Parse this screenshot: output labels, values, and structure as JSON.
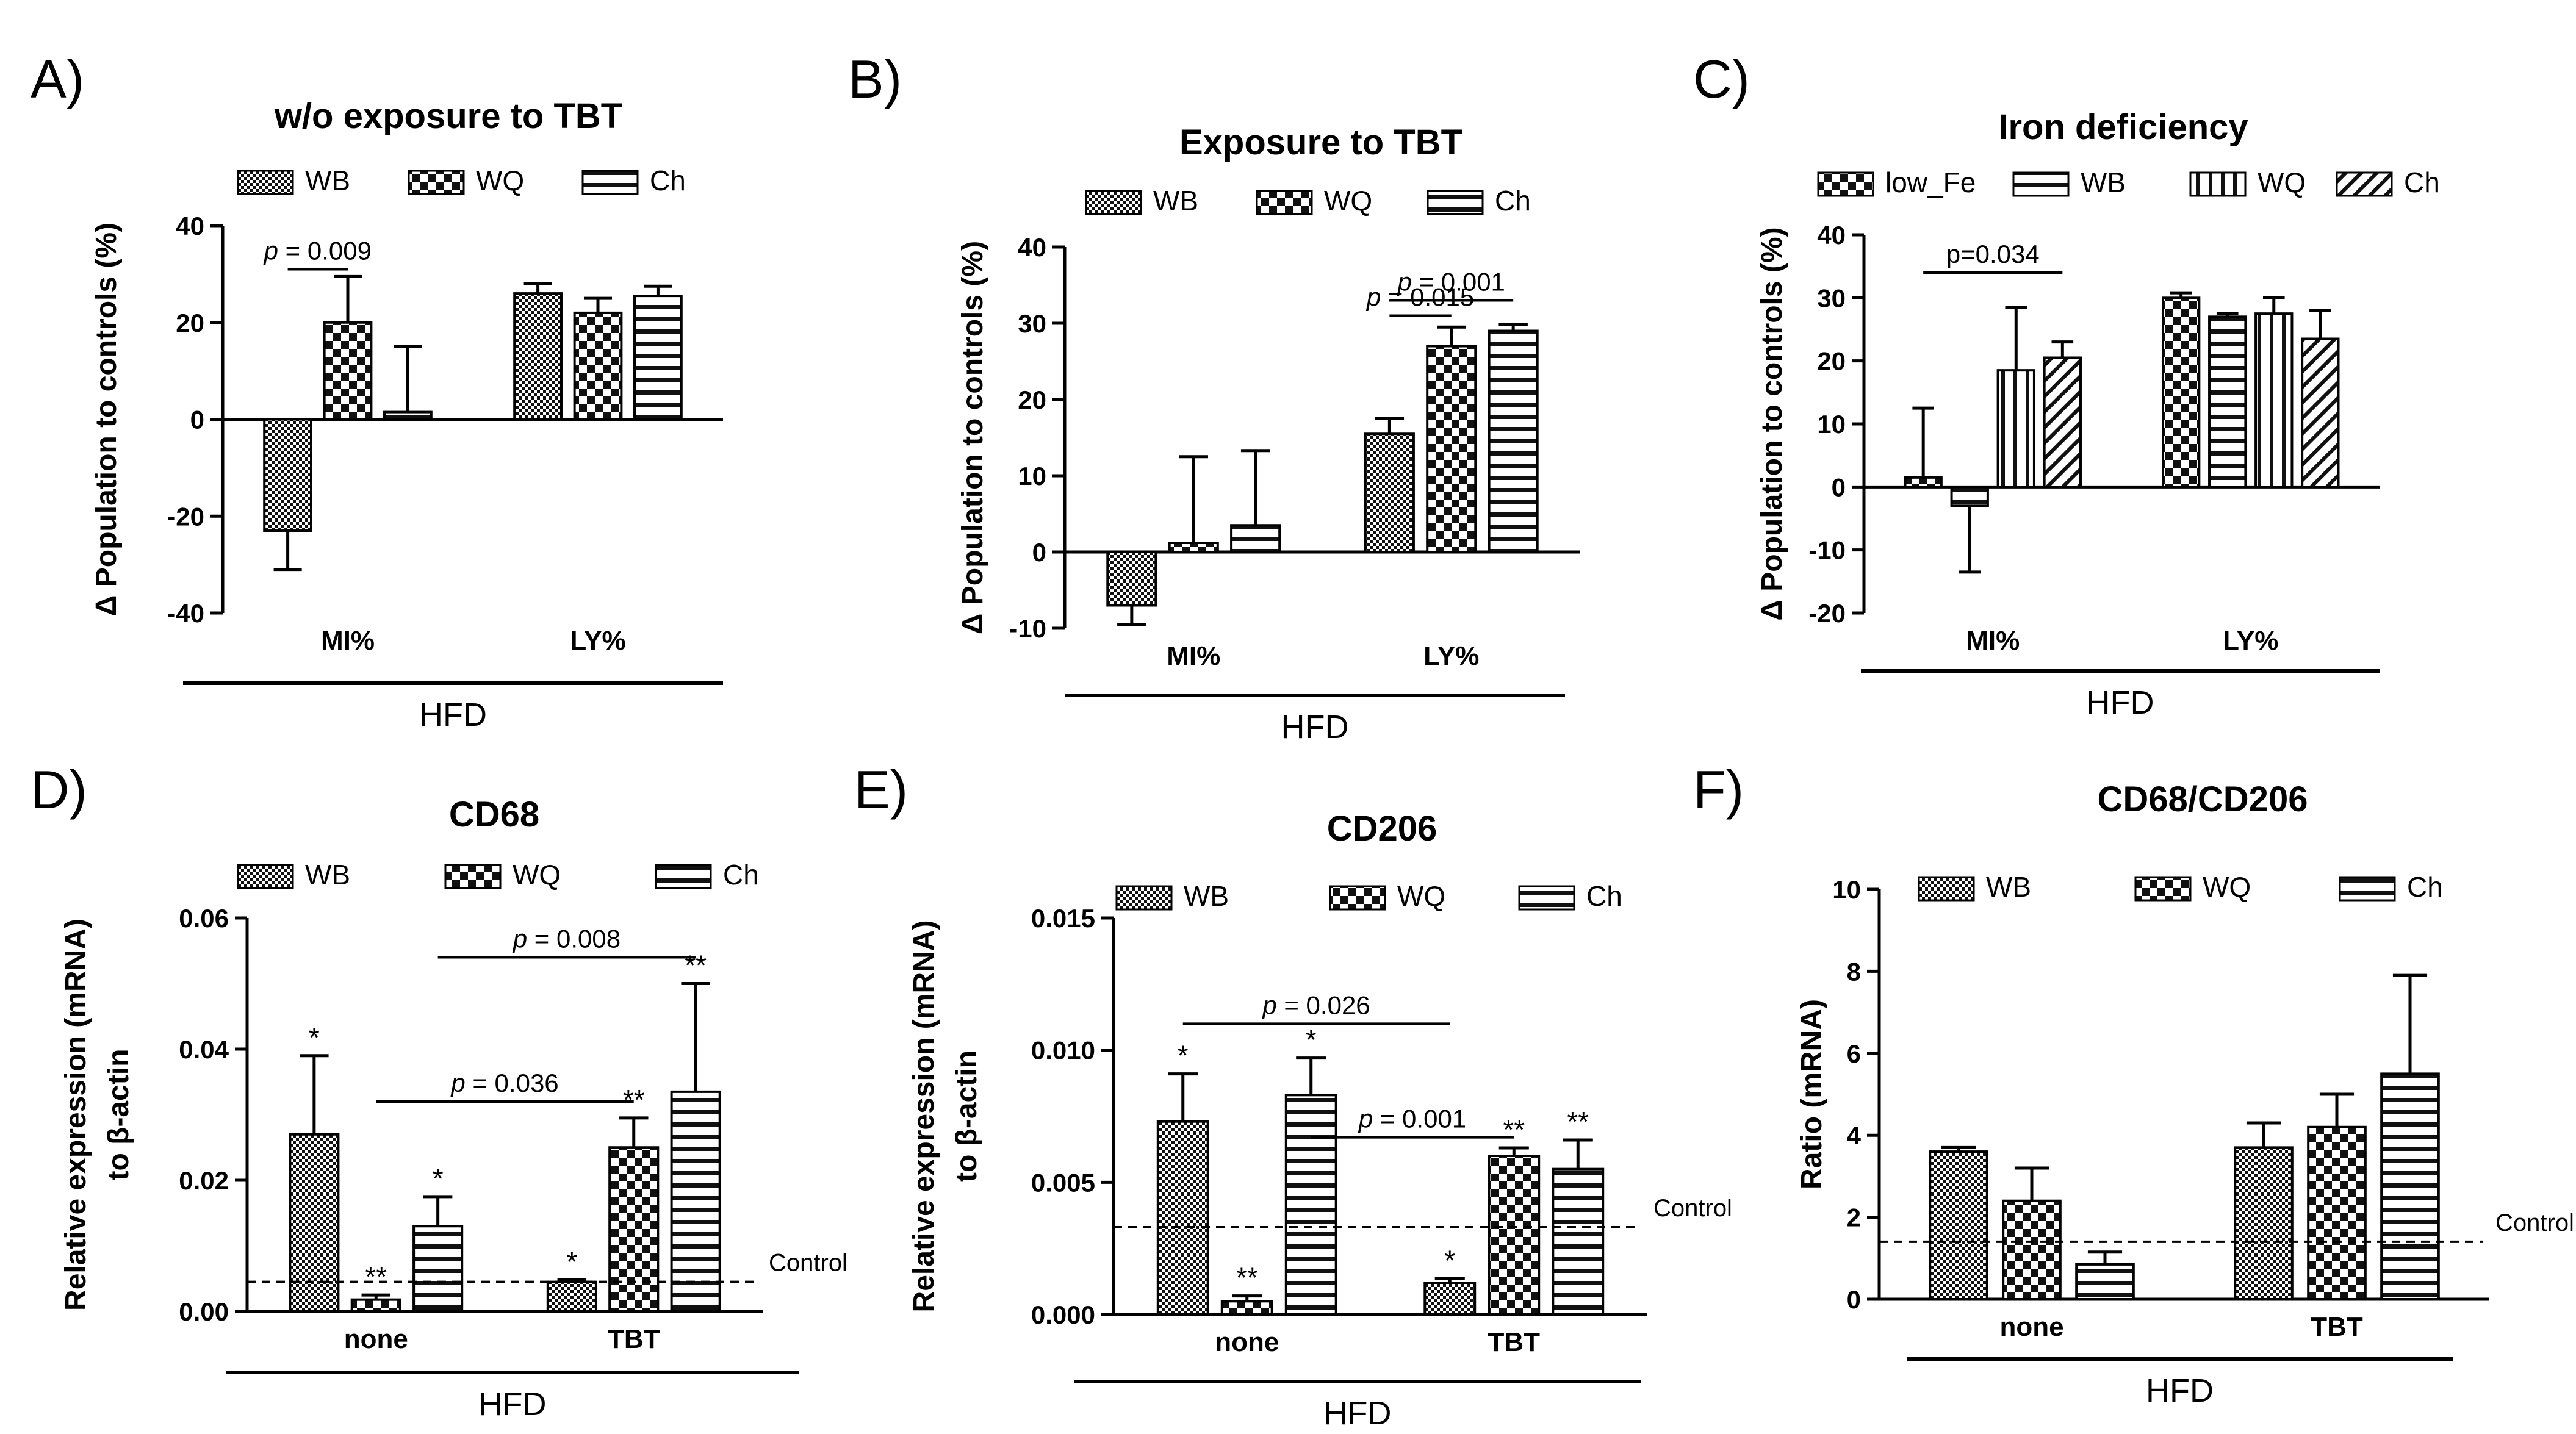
{
  "chart_data": [
    {
      "panel": "A)",
      "type": "bar",
      "title": "w/o exposure to TBT",
      "ylabel": "Δ Population to controls (%)",
      "xlabel": "",
      "group_label": "HFD",
      "ylim": [
        -40,
        40
      ],
      "yticks": [
        -40,
        -20,
        0,
        20,
        40
      ],
      "categories": [
        "MI%",
        "LY%"
      ],
      "series": [
        {
          "name": "WB",
          "pattern": "dense",
          "values": [
            -23,
            26
          ],
          "errors": [
            8,
            2
          ]
        },
        {
          "name": "WQ",
          "pattern": "checker",
          "values": [
            20,
            22
          ],
          "errors": [
            9.5,
            3
          ]
        },
        {
          "name": "Ch",
          "pattern": "hstripe",
          "values": [
            1.5,
            25.5
          ],
          "errors": [
            13.5,
            2
          ]
        }
      ],
      "annotations": [
        {
          "text": "p = 0.009",
          "from": [
            0,
            0
          ],
          "to": [
            0,
            1
          ],
          "y": 31
        }
      ],
      "marks": [],
      "control": null
    },
    {
      "panel": "B)",
      "type": "bar",
      "title": "Exposure to TBT",
      "ylabel": "Δ Population to controls (%)",
      "xlabel": "",
      "group_label": "HFD",
      "ylim": [
        -10,
        40
      ],
      "yticks": [
        -10,
        0,
        10,
        20,
        30,
        40
      ],
      "categories": [
        "MI%",
        "LY%"
      ],
      "series": [
        {
          "name": "WB",
          "pattern": "dense",
          "values": [
            -7,
            15.5
          ],
          "errors": [
            2.5,
            2
          ]
        },
        {
          "name": "WQ",
          "pattern": "checker",
          "values": [
            1.2,
            27
          ],
          "errors": [
            11.3,
            2.5
          ]
        },
        {
          "name": "Ch",
          "pattern": "hstripe",
          "values": [
            3.5,
            29
          ],
          "errors": [
            9.8,
            0.8
          ]
        }
      ],
      "annotations": [
        {
          "text": "p = 0.001",
          "from": [
            1,
            0
          ],
          "to": [
            1,
            2
          ],
          "y": 33
        },
        {
          "text": "p = 0.015",
          "from": [
            1,
            0
          ],
          "to": [
            1,
            1
          ],
          "y": 31
        }
      ],
      "marks": [],
      "control": null
    },
    {
      "panel": "C)",
      "type": "bar",
      "title": "Iron deficiency",
      "ylabel": "Δ Population to controls (%)",
      "xlabel": "",
      "group_label": "HFD",
      "ylim": [
        -20,
        40
      ],
      "yticks": [
        -20,
        -10,
        0,
        10,
        20,
        30,
        40
      ],
      "categories": [
        "MI%",
        "LY%"
      ],
      "series": [
        {
          "name": "low_Fe",
          "pattern": "checker",
          "values": [
            1.5,
            30
          ],
          "errors": [
            11,
            0.8
          ]
        },
        {
          "name": "WB",
          "pattern": "hstripe",
          "values": [
            -3,
            27
          ],
          "errors": [
            10.5,
            0.5
          ]
        },
        {
          "name": "WQ",
          "pattern": "vstripe",
          "values": [
            18.5,
            27.5
          ],
          "errors": [
            10,
            2.5
          ]
        },
        {
          "name": "Ch",
          "pattern": "diag",
          "values": [
            20.5,
            23.5
          ],
          "errors": [
            2.5,
            4.5
          ]
        }
      ],
      "annotations": [
        {
          "text": "p=0.034",
          "from": [
            0,
            0
          ],
          "to": [
            0,
            3
          ],
          "y": 34
        }
      ],
      "marks": [],
      "control": null
    },
    {
      "panel": "D)",
      "type": "bar",
      "title": "CD68",
      "ylabel": "Relative expression (mRNA)",
      "ylabel2": "to β-actin",
      "xlabel": "",
      "group_label": "HFD",
      "ylim": [
        0,
        0.06
      ],
      "yticks": [
        "0.00",
        "0.02",
        "0.04",
        "0.06"
      ],
      "categories": [
        "none",
        "TBT"
      ],
      "series": [
        {
          "name": "WB",
          "pattern": "dense",
          "values": [
            0.027,
            0.0045
          ],
          "errors": [
            0.012,
            0.0003
          ]
        },
        {
          "name": "WQ",
          "pattern": "checker",
          "values": [
            0.0018,
            0.025
          ],
          "errors": [
            0.0007,
            0.0045
          ]
        },
        {
          "name": "Ch",
          "pattern": "hstripe",
          "values": [
            0.013,
            0.0335
          ],
          "errors": [
            0.0045,
            0.0165
          ]
        }
      ],
      "annotations": [
        {
          "text": "p = 0.008",
          "from": [
            0,
            2
          ],
          "to": [
            1,
            2
          ],
          "y": 0.054
        },
        {
          "text": "p = 0.036",
          "from": [
            0,
            1
          ],
          "to": [
            1,
            1
          ],
          "y": 0.032
        }
      ],
      "marks": [
        {
          "text": "*",
          "cat": 0,
          "s": 0
        },
        {
          "text": "**",
          "cat": 0,
          "s": 1
        },
        {
          "text": "*",
          "cat": 0,
          "s": 2
        },
        {
          "text": "*",
          "cat": 1,
          "s": 0
        },
        {
          "text": "**",
          "cat": 1,
          "s": 1
        },
        {
          "text": "**",
          "cat": 1,
          "s": 2
        }
      ],
      "control": {
        "label": "Control",
        "value": 0.0045
      }
    },
    {
      "panel": "E)",
      "type": "bar",
      "title": "CD206",
      "ylabel": "Relative expression (mRNA)",
      "ylabel2": "to β-actin",
      "xlabel": "",
      "group_label": "HFD",
      "ylim": [
        0,
        0.015
      ],
      "yticks": [
        "0.000",
        "0.005",
        "0.010",
        "0.015"
      ],
      "categories": [
        "none",
        "TBT"
      ],
      "series": [
        {
          "name": "WB",
          "pattern": "dense",
          "values": [
            0.0073,
            0.0012
          ],
          "errors": [
            0.0018,
            0.00015
          ]
        },
        {
          "name": "WQ",
          "pattern": "checker",
          "values": [
            0.0005,
            0.006
          ],
          "errors": [
            0.0002,
            0.0003
          ]
        },
        {
          "name": "Ch",
          "pattern": "hstripe",
          "values": [
            0.0083,
            0.0055
          ],
          "errors": [
            0.0014,
            0.0011
          ]
        }
      ],
      "annotations": [
        {
          "text": "p = 0.026",
          "from": [
            0,
            0
          ],
          "to": [
            1,
            0
          ],
          "y": 0.011
        },
        {
          "text": "p = 0.001",
          "from": [
            0,
            2
          ],
          "to": [
            1,
            1
          ],
          "y": 0.0067
        }
      ],
      "marks": [
        {
          "text": "*",
          "cat": 0,
          "s": 0
        },
        {
          "text": "**",
          "cat": 0,
          "s": 1
        },
        {
          "text": "*",
          "cat": 0,
          "s": 2
        },
        {
          "text": "*",
          "cat": 1,
          "s": 0
        },
        {
          "text": "**",
          "cat": 1,
          "s": 1
        },
        {
          "text": "**",
          "cat": 1,
          "s": 2
        }
      ],
      "control": {
        "label": "Control",
        "value": 0.0033
      }
    },
    {
      "panel": "F)",
      "type": "bar",
      "title": "CD68/CD206",
      "ylabel": "Ratio (mRNA)",
      "xlabel": "",
      "group_label": "HFD",
      "ylim": [
        0,
        10
      ],
      "yticks": [
        0,
        2,
        4,
        6,
        8,
        10
      ],
      "categories": [
        "none",
        "TBT"
      ],
      "series": [
        {
          "name": "WB",
          "pattern": "dense",
          "values": [
            3.6,
            3.7
          ],
          "errors": [
            0.1,
            0.6
          ]
        },
        {
          "name": "WQ",
          "pattern": "checker",
          "values": [
            2.4,
            4.2
          ],
          "errors": [
            0.8,
            0.8
          ]
        },
        {
          "name": "Ch",
          "pattern": "hstripe",
          "values": [
            0.85,
            5.5
          ],
          "errors": [
            0.3,
            2.4
          ]
        }
      ],
      "annotations": [],
      "marks": [],
      "control": {
        "label": "Control",
        "value": 1.4
      }
    }
  ]
}
